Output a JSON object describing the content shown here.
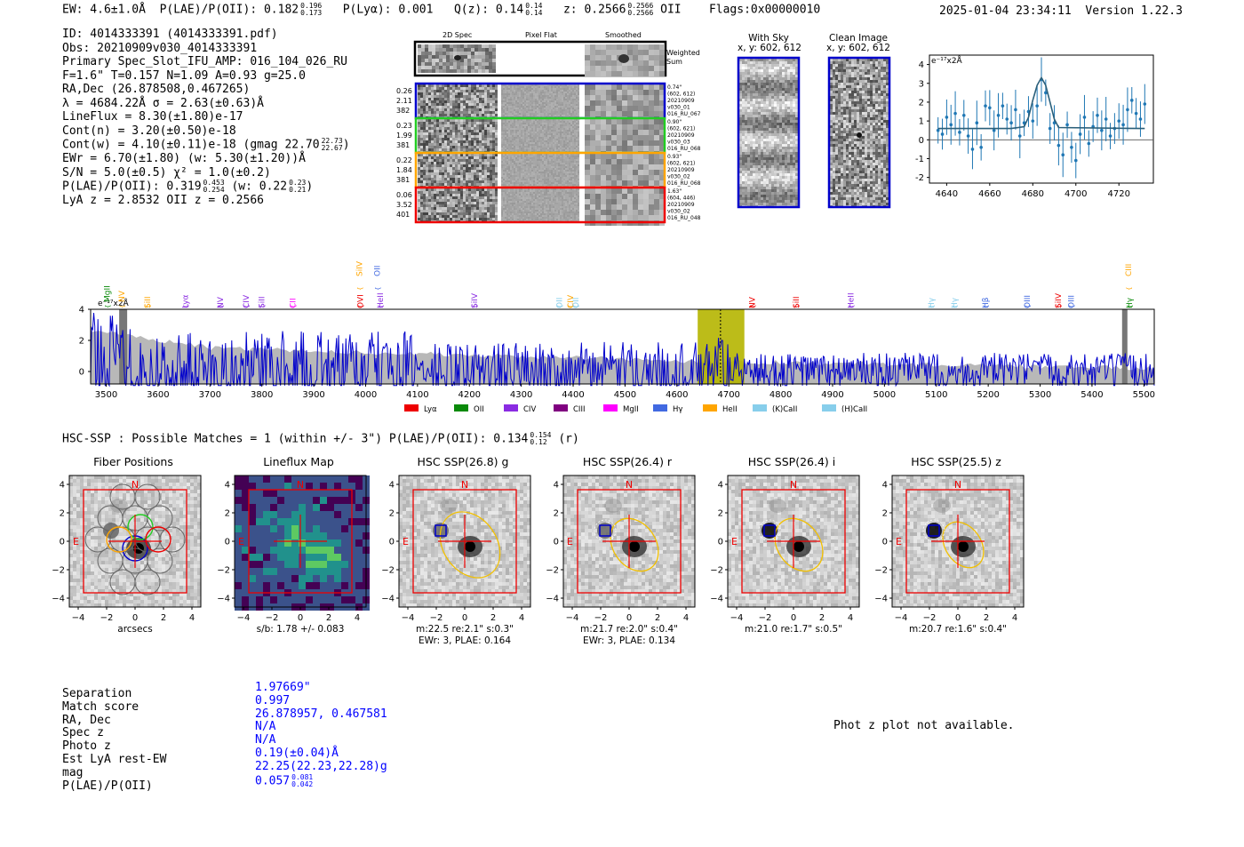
{
  "header": {
    "ew": "EW: 4.6±1.0Å",
    "plae_label": "P(LAE)/P(OII): 0.182",
    "plae_hi": "0.196",
    "plae_lo": "0.173",
    "plya": "P(Lyα): 0.001",
    "q_label": "Q(z): 0.14",
    "q_hi": "0.14",
    "q_lo": "0.14",
    "z_label": "z: 0.2566",
    "z_hi": "0.2566",
    "z_lo": "0.2566",
    "z_line": "OII",
    "flags": "Flags:0x00000010",
    "datetime": "2025-01-04 23:34:11",
    "version": "Version 1.22.3"
  },
  "info": {
    "id": "ID: 4014333391 (4014333391.pdf)",
    "obs": "Obs: 20210909v030_4014333391",
    "primary": "Primary Spec_Slot_IFU_AMP: 016_104_026_RU",
    "fit": "F=1.6\"  T=0.157  N=1.09  A=0.93  g=25.0",
    "radec": "RA,Dec (26.878508,0.467265)",
    "lambda": "λ = 4684.22Å  σ = 2.63(±0.63)Å",
    "lineflux": "LineFlux = 8.30(±1.80)e-17",
    "contn": "Cont(n) = 3.20(±0.50)e-18",
    "contw": "Cont(w) = 4.10(±0.11)e-18 (gmag 22.70",
    "contw_hi": "22.73",
    "contw_lo": "22.67",
    "ewr": "EWr = 6.70(±1.80) (w: 5.30(±1.20))Å",
    "sn": "S/N = 5.0(±0.5)  χ² = 1.0(±0.2)",
    "plae": "P(LAE)/P(OII): 0.319",
    "plae_hi": "0.453",
    "plae_lo": "0.254",
    "plae_w": "(w: 0.22",
    "plae_w_hi": "0.23",
    "plae_w_lo": "0.21",
    "lya_z": "LyA z = 2.8532  OII z = 0.2566"
  },
  "cutouts": {
    "col_2d": "2D Spec",
    "col_flat": "Pixel Flat",
    "col_smooth": "Smoothed",
    "weighted": "Weighted",
    "sum": "Sum",
    "rows": [
      {
        "left": [
          "0.26",
          "2.11",
          "382"
        ],
        "right": [
          "0.74\"",
          "(602, 612)",
          "20210909",
          "v030_01",
          "016_RU_067"
        ],
        "color": "#0000cc"
      },
      {
        "left": [
          "0.23",
          "1.99",
          "381"
        ],
        "right": [
          "0.90\"",
          "(602, 621)",
          "20210909",
          "v030_03",
          "016_RU_068"
        ],
        "color": "#22cc22"
      },
      {
        "left": [
          "0.22",
          "1.84",
          "381"
        ],
        "right": [
          "0.93\"",
          "(602, 621)",
          "20210909",
          "v030_02",
          "016_RU_068"
        ],
        "color": "#ffa500"
      },
      {
        "left": [
          "0.06",
          "3.52",
          "401"
        ],
        "right": [
          "1.63\"",
          "(604, 446)",
          "20210909",
          "v030_02",
          "016_RU_048"
        ],
        "color": "#ee0000"
      }
    ]
  },
  "sky": {
    "title1": "With Sky",
    "coords1": "x, y: 602, 612",
    "title2": "Clean Image",
    "coords2": "x, y: 602, 612"
  },
  "zoom_chart": {
    "ylabel": "e⁻¹⁷x2Å",
    "x": [
      4636,
      4638,
      4640,
      4642,
      4644,
      4646,
      4648,
      4650,
      4652,
      4654,
      4656,
      4658,
      4660,
      4662,
      4664,
      4666,
      4668,
      4670,
      4672,
      4674,
      4676,
      4678,
      4680,
      4682,
      4684,
      4686,
      4688,
      4690,
      4692,
      4694,
      4696,
      4698,
      4700,
      4702,
      4704,
      4706,
      4708,
      4710,
      4712,
      4714,
      4716,
      4718,
      4720,
      4722,
      4724,
      4726,
      4728,
      4730,
      4732
    ],
    "y": [
      0.5,
      0.3,
      1.2,
      0.8,
      1.4,
      0.4,
      1.3,
      0.2,
      -0.5,
      0.9,
      -0.4,
      1.8,
      1.7,
      0.5,
      1.3,
      1.8,
      1.1,
      0.9,
      1.6,
      0.2,
      0.9,
      1.5,
      1.0,
      1.8,
      3.2,
      2.5,
      0.6,
      0.9,
      -0.3,
      -0.8,
      0.8,
      -0.4,
      -1.1,
      0.3,
      1.2,
      -0.2,
      0.7,
      1.3,
      0.5,
      1.1,
      0.2,
      0.6,
      1.0,
      0.8,
      1.6,
      2.1,
      1.4,
      1.1,
      1.9
    ],
    "fit_x": [
      4636,
      4670,
      4676,
      4678,
      4680,
      4682,
      4684,
      4686,
      4688,
      4690,
      4692,
      4732
    ],
    "fit_y": [
      0.6,
      0.6,
      0.7,
      1.2,
      2.1,
      2.9,
      3.3,
      2.9,
      2.0,
      1.1,
      0.65,
      0.6
    ],
    "xticks": [
      4640,
      4660,
      4680,
      4700,
      4720
    ],
    "yticks": [
      -2,
      -1,
      0,
      1,
      2,
      3,
      4
    ],
    "xlim": [
      4632,
      4736
    ],
    "ylim": [
      -2.3,
      4.5
    ]
  },
  "spectrum": {
    "ylabel": "e⁻¹⁷x2Å",
    "xticks": [
      3500,
      3600,
      3700,
      3800,
      3900,
      4000,
      4100,
      4200,
      4300,
      4400,
      4500,
      4600,
      4700,
      4800,
      4900,
      5000,
      5100,
      5200,
      5300,
      5400,
      5500
    ],
    "yticks": [
      0,
      2,
      4
    ],
    "xlim": [
      3470,
      5520
    ],
    "ylim": [
      -0.8,
      4.0
    ],
    "highlight": [
      4640,
      4730
    ],
    "center": 4684,
    "lines": [
      {
        "label": "MgII",
        "x": 3502,
        "color": "#0a8a0a",
        "level": 2
      },
      {
        "label": "NV",
        "x": 3530,
        "color": "#ffa500",
        "level": 2
      },
      {
        "label": "SiII",
        "x": 3580,
        "color": "#ffa500",
        "level": 1
      },
      {
        "label": "Lyα",
        "x": 3652,
        "color": "#8a2be2",
        "level": 1
      },
      {
        "label": "NV",
        "x": 3720,
        "color": "#8a2be2",
        "level": 1
      },
      {
        "label": "CIV",
        "x": 3770,
        "color": "#8a2be2",
        "level": 1
      },
      {
        "label": "SiII",
        "x": 3800,
        "color": "#8a2be2",
        "level": 1
      },
      {
        "label": "CII",
        "x": 3860,
        "color": "#ff00ff",
        "level": 1
      },
      {
        "label": "SiIV",
        "x": 3988,
        "color": "#ffa500",
        "level": 3
      },
      {
        "label": "OVI",
        "x": 3990,
        "color": "#ee0000",
        "level": 1
      },
      {
        "label": "OII",
        "x": 4022,
        "color": "#4169e1",
        "level": 3
      },
      {
        "label": "HeII",
        "x": 4028,
        "color": "#8a2be2",
        "level": 1
      },
      {
        "label": "SiIV",
        "x": 4210,
        "color": "#8a2be2",
        "level": 1
      },
      {
        "label": "OII",
        "x": 4373,
        "color": "#87ceeb",
        "level": 1
      },
      {
        "label": "CIV",
        "x": 4395,
        "color": "#ffa500",
        "level": 1
      },
      {
        "label": "OII",
        "x": 4405,
        "color": "#87ceeb",
        "level": 1
      },
      {
        "label": "NV",
        "x": 4745,
        "color": "#ee0000",
        "level": 1
      },
      {
        "label": "SiII",
        "x": 4830,
        "color": "#ee0000",
        "level": 1
      },
      {
        "label": "HeII",
        "x": 4935,
        "color": "#8a2be2",
        "level": 1
      },
      {
        "label": "Hγ",
        "x": 5090,
        "color": "#87ceeb",
        "level": 1
      },
      {
        "label": "Hγ",
        "x": 5135,
        "color": "#87ceeb",
        "level": 1
      },
      {
        "label": "Hβ",
        "x": 5195,
        "color": "#4169e1",
        "level": 1
      },
      {
        "label": "OIII",
        "x": 5275,
        "color": "#4169e1",
        "level": 1
      },
      {
        "label": "SiIV",
        "x": 5335,
        "color": "#ee0000",
        "level": 1
      },
      {
        "label": "OIII",
        "x": 5360,
        "color": "#4169e1",
        "level": 1
      },
      {
        "label": "CIII",
        "x": 5470,
        "color": "#ffa500",
        "level": 3
      },
      {
        "label": "Hγ",
        "x": 5472,
        "color": "#0a8a0a",
        "level": 1
      }
    ],
    "legend": [
      {
        "label": "Lyα",
        "color": "#ee0000"
      },
      {
        "label": "OII",
        "color": "#0a8a0a"
      },
      {
        "label": "CIV",
        "color": "#8a2be2"
      },
      {
        "label": "CIII",
        "color": "#800080"
      },
      {
        "label": "MgII",
        "color": "#ff00ff"
      },
      {
        "label": "Hγ",
        "color": "#4169e1"
      },
      {
        "label": "HeII",
        "color": "#ffa500"
      },
      {
        "label": "(K)CaII",
        "color": "#87ceeb"
      },
      {
        "label": "(H)CaII",
        "color": "#87ceeb"
      }
    ]
  },
  "hsc": {
    "title": "HSC-SSP : Possible Matches = 1 (within +/- 3\")  P(LAE)/P(OII): 0.134",
    "plae_hi": "0.154",
    "plae_lo": "0.12",
    "band": "(r)",
    "panels": [
      {
        "title": "Fiber Positions",
        "sub1": "arcsecs",
        "sub2": ""
      },
      {
        "title": "Lineflux Map",
        "sub1": "s/b: 1.78 +/- 0.083",
        "sub2": ""
      },
      {
        "title": "HSC SSP(26.8) g",
        "sub1": "m:22.5  re:2.1\"  s:0.3\"",
        "sub2": "EWr: 3, PLAE: 0.164"
      },
      {
        "title": "HSC SSP(26.4) r",
        "sub1": "m:21.7  re:2.0\"  s:0.4\"",
        "sub2": "EWr: 3, PLAE: 0.134"
      },
      {
        "title": "HSC SSP(26.4) i",
        "sub1": "m:21.0  re:1.7\"  s:0.5\"",
        "sub2": ""
      },
      {
        "title": "HSC SSP(25.5) z",
        "sub1": "m:20.7  re:1.6\"  s:0.4\"",
        "sub2": ""
      }
    ],
    "ticks": [
      "−4",
      "−2",
      "0",
      "2",
      "4"
    ],
    "north": "N",
    "east": "E"
  },
  "match": {
    "labels": [
      "Separation",
      "Match score",
      "RA, Dec",
      "Spec z",
      "Photo z",
      "Est LyA rest-EW",
      "mag",
      "P(LAE)/P(OII)"
    ],
    "values": [
      "1.97669\"",
      "0.997",
      "26.878957, 0.467581",
      "N/A",
      "N/A",
      "0.19(±0.04)Å",
      "22.25(22.23,22.28)g",
      "0.057"
    ],
    "plae_hi": "0.081",
    "plae_lo": "0.042"
  },
  "photz": {
    "message": "Phot z plot not available."
  },
  "colors": {
    "blue": "#0000ff",
    "spectrum": "#0000cc",
    "highlight": "#b5b500",
    "model": "#b8b8b8",
    "zoom_points": "#1f77b4",
    "zoom_fit": "#2a5f7a"
  }
}
